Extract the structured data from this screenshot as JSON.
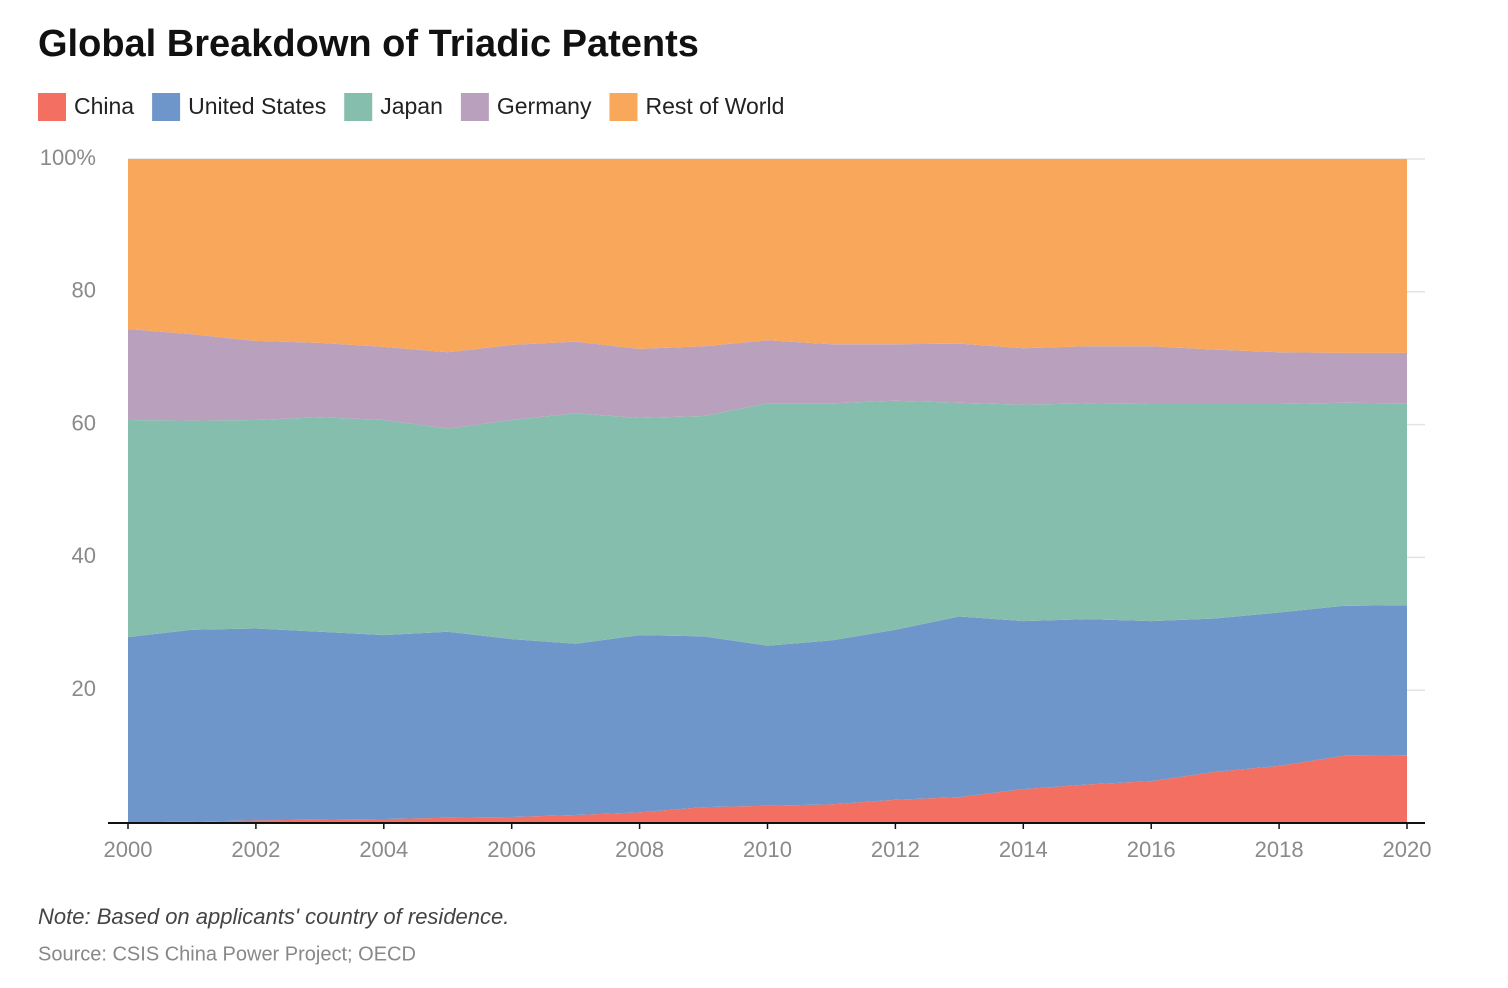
{
  "chart_data": {
    "type": "stacked-area",
    "title": "Global Breakdown of Triadic Patents",
    "note": "Note: Based on applicants' country of residence.",
    "source": "Source: CSIS China Power Project; OECD",
    "x": [
      2000,
      2001,
      2002,
      2003,
      2004,
      2005,
      2006,
      2007,
      2008,
      2009,
      2010,
      2011,
      2012,
      2013,
      2014,
      2015,
      2016,
      2017,
      2018,
      2019,
      2020
    ],
    "xlim": [
      2000,
      2020
    ],
    "xticks": [
      2000,
      2002,
      2004,
      2006,
      2008,
      2010,
      2012,
      2014,
      2016,
      2018,
      2020
    ],
    "ylim": [
      0,
      100
    ],
    "yticks": [
      20,
      40,
      60,
      80,
      {
        "value": 100,
        "label": "100%"
      }
    ],
    "grid": true,
    "legend": "top-left",
    "series": [
      {
        "name": "China",
        "color": "#f26f62",
        "values": [
          0.1,
          0.2,
          0.4,
          0.5,
          0.6,
          0.8,
          0.9,
          1.2,
          1.6,
          2.4,
          2.6,
          2.8,
          3.5,
          3.9,
          5.1,
          5.8,
          6.3,
          7.7,
          8.6,
          10.1,
          10.2
        ]
      },
      {
        "name": "United States",
        "color": "#6e96ca",
        "values": [
          27.9,
          28.9,
          28.9,
          28.3,
          27.7,
          28.0,
          26.8,
          25.8,
          26.7,
          25.7,
          24.1,
          24.7,
          25.6,
          27.2,
          25.3,
          24.9,
          24.1,
          23.1,
          23.1,
          22.6,
          22.6
        ]
      },
      {
        "name": "Japan",
        "color": "#86beae",
        "values": [
          32.7,
          31.5,
          31.4,
          32.3,
          32.4,
          30.6,
          33.0,
          34.7,
          32.7,
          33.2,
          36.5,
          35.7,
          34.5,
          32.2,
          32.6,
          32.5,
          32.7,
          32.3,
          31.4,
          30.6,
          30.4
        ]
      },
      {
        "name": "Germany",
        "color": "#b9a0bd",
        "values": [
          13.7,
          13.0,
          11.9,
          11.2,
          11.0,
          11.5,
          11.3,
          10.8,
          10.4,
          10.5,
          9.5,
          8.9,
          8.5,
          8.9,
          8.5,
          8.6,
          8.7,
          8.2,
          7.8,
          7.5,
          7.6
        ]
      },
      {
        "name": "Rest of World",
        "color": "#f8a75b",
        "values": [
          25.6,
          26.4,
          27.4,
          27.7,
          28.3,
          29.1,
          28.0,
          27.5,
          28.6,
          28.2,
          27.3,
          27.9,
          27.9,
          27.8,
          28.5,
          28.2,
          28.2,
          28.7,
          29.1,
          29.2,
          29.2
        ]
      }
    ]
  }
}
